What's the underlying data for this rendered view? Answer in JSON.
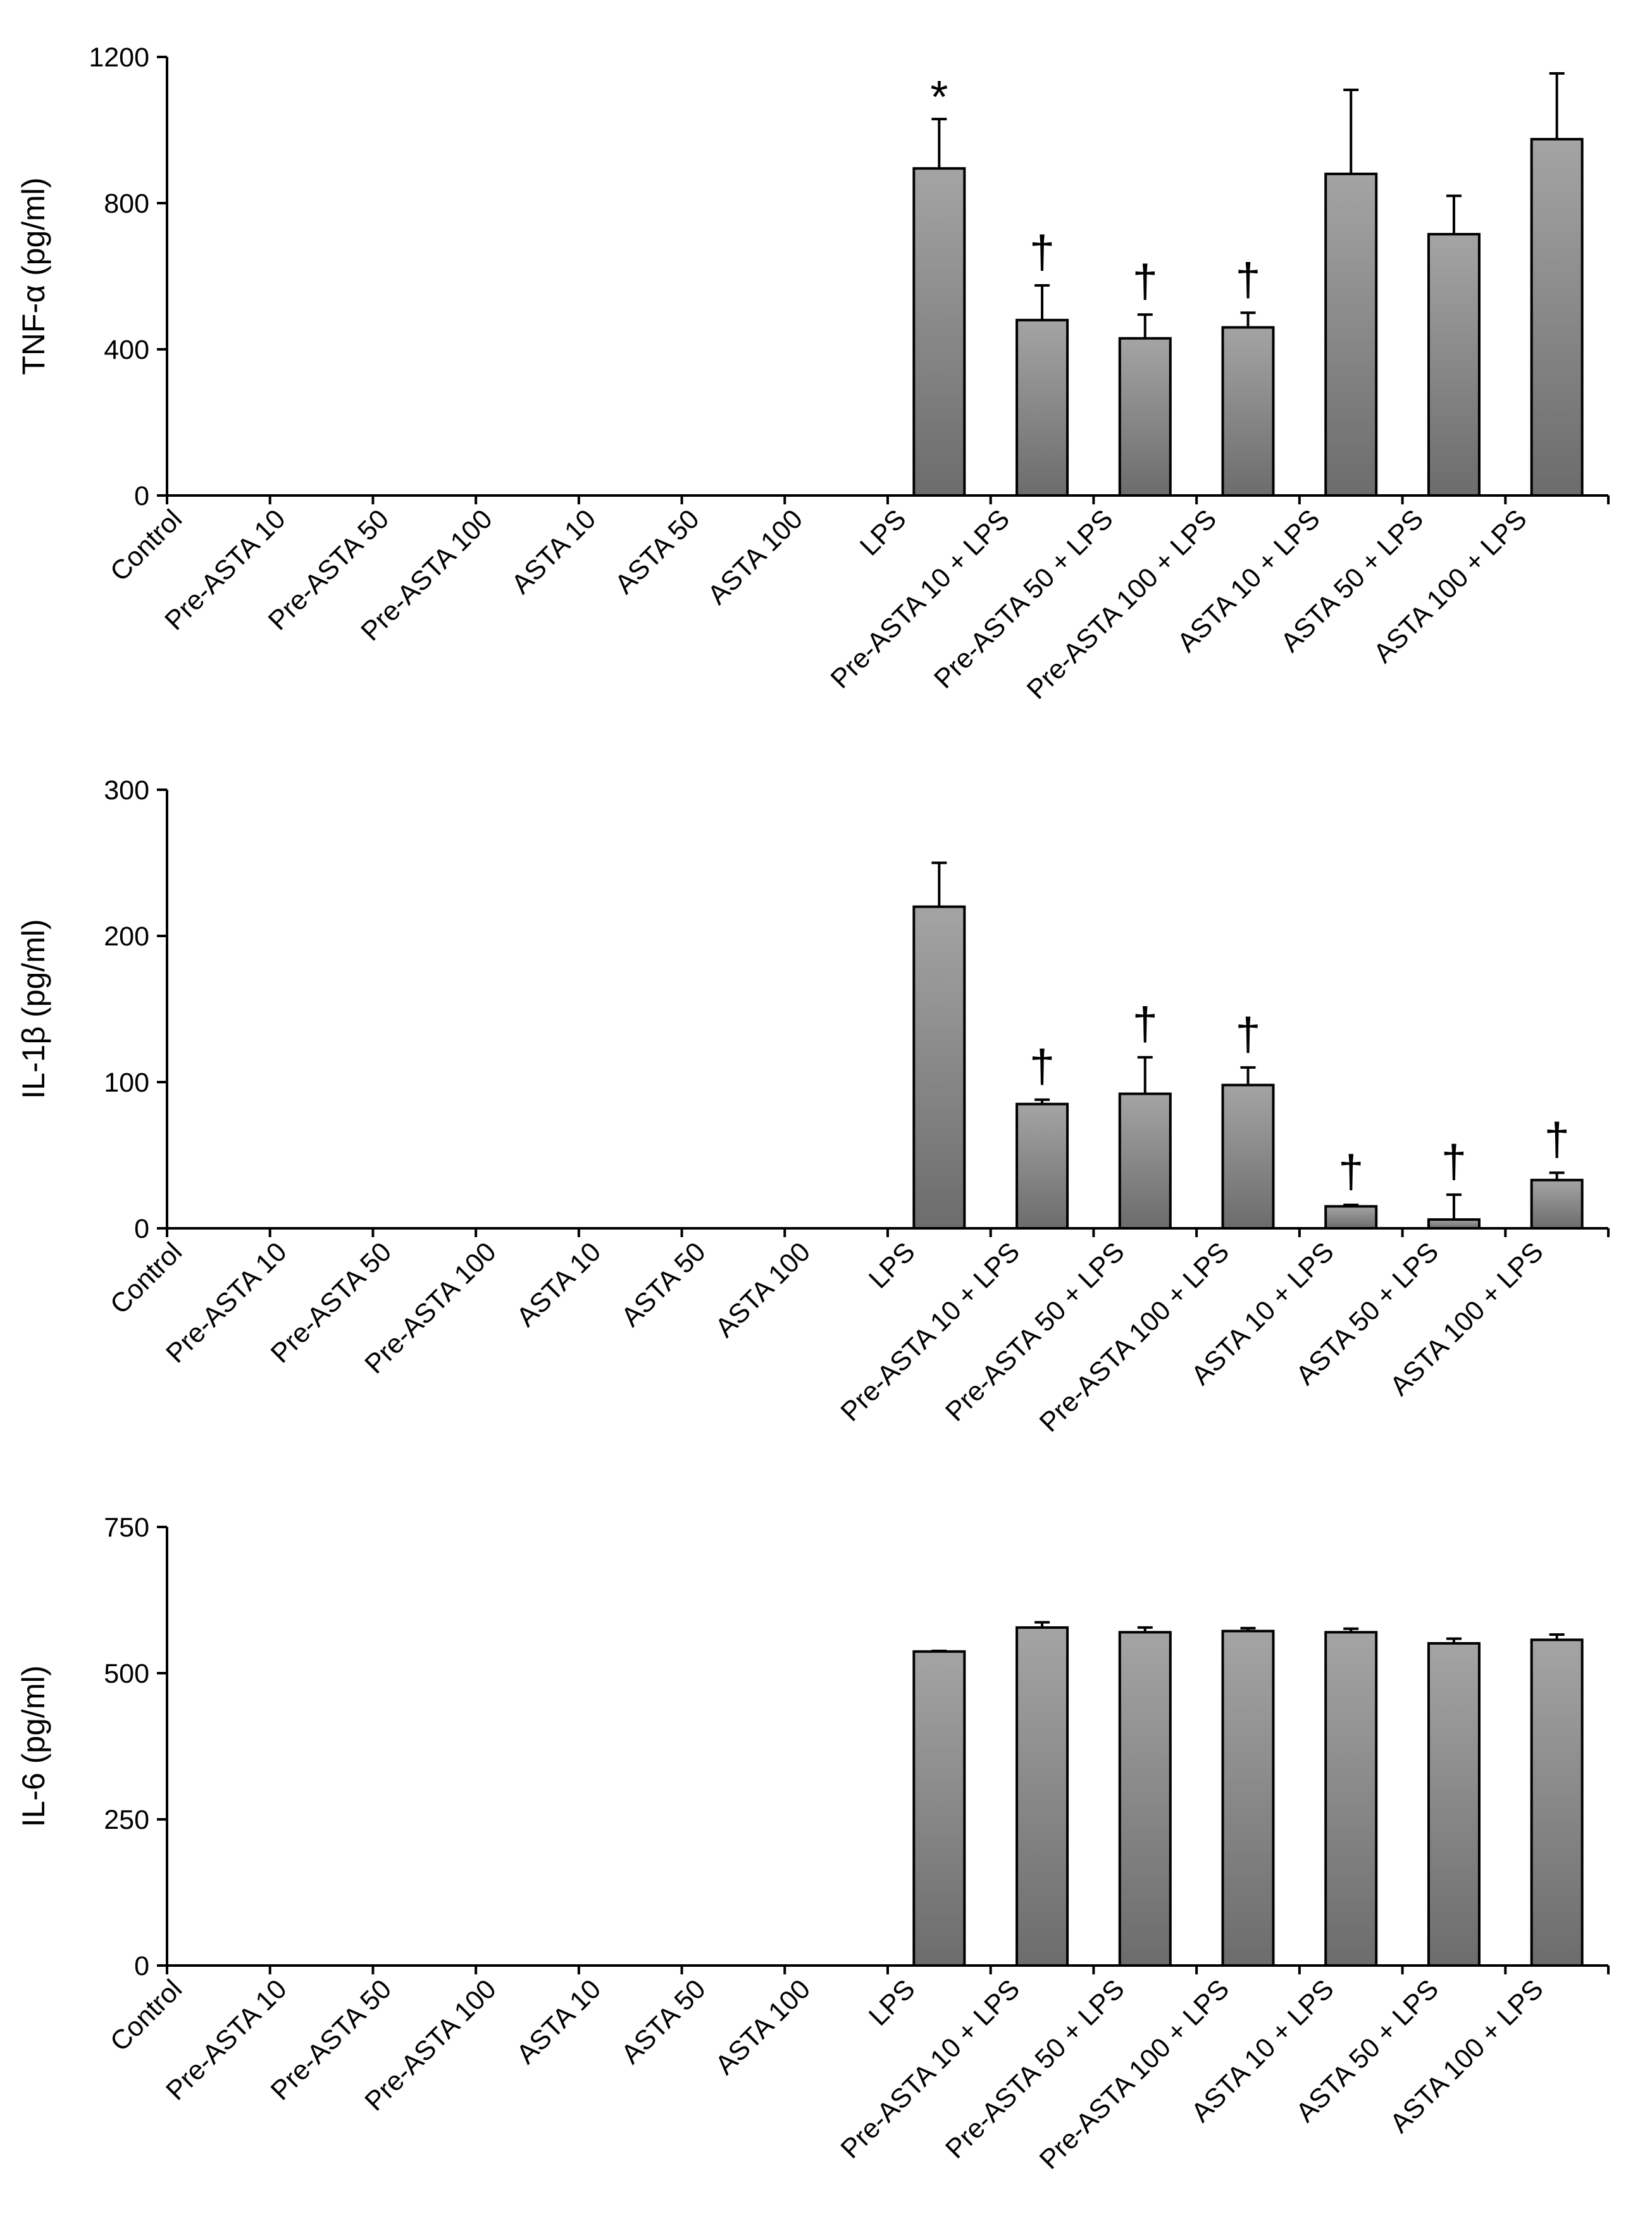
{
  "chart_data": [
    {
      "type": "bar",
      "title": "",
      "xlabel": "",
      "ylabel": "TNF-α (pg/ml)",
      "ylim": [
        0,
        1200
      ],
      "yticks": [
        0,
        400,
        800,
        1200
      ],
      "tick_labels": [
        "0",
        "400",
        "800",
        "1200"
      ],
      "categories": [
        "Control",
        "Pre-ASTA 10",
        "Pre-ASTA 50",
        "Pre-ASTA 100",
        "ASTA 10",
        "ASTA 50",
        "ASTA 100",
        "LPS",
        "Pre-ASTA 10 + LPS",
        "Pre-ASTA 50 + LPS",
        "Pre-ASTA 100 + LPS",
        "ASTA 10 + LPS",
        "ASTA 50 + LPS",
        "ASTA 100 + LPS"
      ],
      "values": [
        0,
        0,
        0,
        0,
        0,
        0,
        0,
        895,
        480,
        430,
        460,
        880,
        715,
        975
      ],
      "errors": [
        0,
        0,
        0,
        0,
        0,
        0,
        0,
        135,
        95,
        65,
        40,
        230,
        105,
        180
      ],
      "annotations": [
        "",
        "",
        "",
        "",
        "",
        "",
        "",
        "*",
        "†",
        "†",
        "†",
        "",
        "",
        ""
      ],
      "grid": false,
      "legend": "none"
    },
    {
      "type": "bar",
      "title": "",
      "xlabel": "",
      "ylabel": "IL-1β (pg/ml)",
      "ylim": [
        0,
        300
      ],
      "yticks": [
        0,
        100,
        200,
        300
      ],
      "tick_labels": [
        "0",
        "100",
        "200",
        "300"
      ],
      "categories": [
        "Control",
        "Pre-ASTA 10",
        "Pre-ASTA 50",
        "Pre-ASTA 100",
        "ASTA 10",
        "ASTA 50",
        "ASTA 100",
        "LPS",
        "Pre-ASTA 10 + LPS",
        "Pre-ASTA 50 + LPS",
        "Pre-ASTA 100 + LPS",
        "ASTA 10 + LPS",
        "ASTA 50 + LPS",
        "ASTA 100 + LPS"
      ],
      "values": [
        0,
        0,
        0,
        0,
        0,
        0,
        0,
        220,
        85,
        92,
        98,
        15,
        6,
        33
      ],
      "errors": [
        0,
        0,
        0,
        0,
        0,
        0,
        0,
        30,
        3,
        25,
        12,
        1,
        17,
        5
      ],
      "annotations": [
        "",
        "",
        "",
        "",
        "",
        "",
        "",
        "",
        "†",
        "†",
        "†",
        "†",
        "†",
        "†"
      ],
      "grid": false,
      "legend": "none"
    },
    {
      "type": "bar",
      "title": "",
      "xlabel": "",
      "ylabel": "IL-6 (pg/ml)",
      "ylim": [
        0,
        750
      ],
      "yticks": [
        0,
        250,
        500,
        750
      ],
      "tick_labels": [
        "0",
        "250",
        "500",
        "750"
      ],
      "categories": [
        "Control",
        "Pre-ASTA 10",
        "Pre-ASTA 50",
        "Pre-ASTA 100",
        "ASTA 10",
        "ASTA 50",
        "ASTA 100",
        "LPS",
        "Pre-ASTA 10 + LPS",
        "Pre-ASTA 50 + LPS",
        "Pre-ASTA 100 + LPS",
        "ASTA 10 + LPS",
        "ASTA 50 + LPS",
        "ASTA 100 + LPS"
      ],
      "values": [
        0,
        0,
        0,
        0,
        0,
        0,
        0,
        537,
        578,
        570,
        572,
        570,
        551,
        557
      ],
      "errors": [
        0,
        0,
        0,
        0,
        0,
        0,
        0,
        1,
        9,
        8,
        5,
        6,
        8,
        9
      ],
      "annotations": [
        "",
        "",
        "",
        "",
        "",
        "",
        "",
        "",
        "",
        "",
        "",
        "",
        "",
        ""
      ],
      "grid": false,
      "legend": "none"
    }
  ]
}
